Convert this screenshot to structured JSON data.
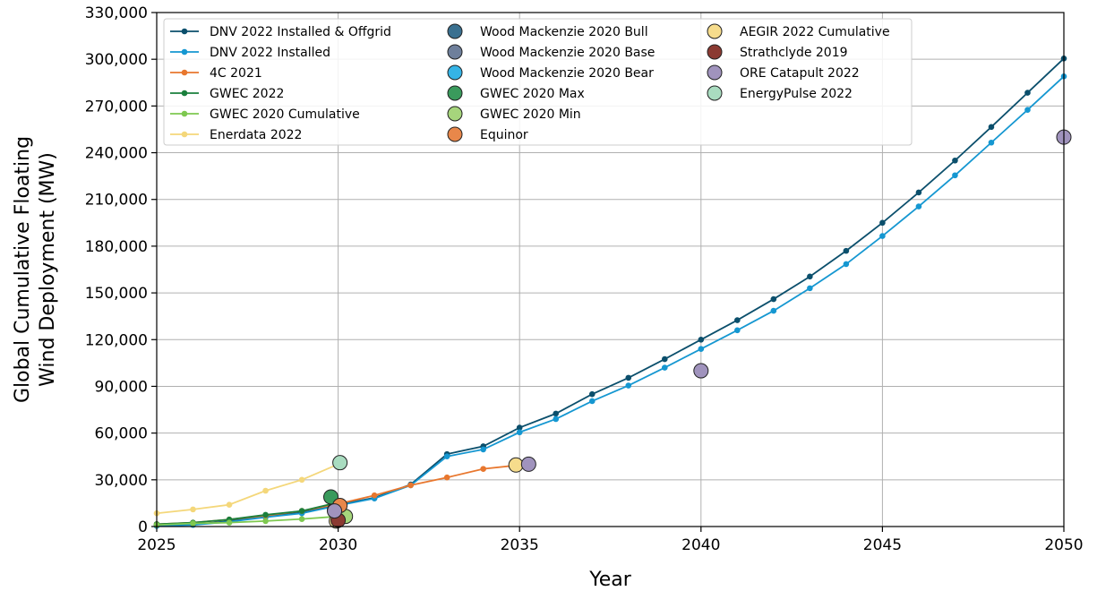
{
  "chart_data": {
    "type": "line",
    "title": "",
    "xlabel": "Year",
    "ylabel_lines": [
      "Global Cumulative Floating",
      "Wind Deployment (MW)"
    ],
    "xlim": [
      2025,
      2050
    ],
    "ylim": [
      0,
      330000
    ],
    "xticks": [
      2025,
      2030,
      2035,
      2040,
      2045,
      2050
    ],
    "yticks": [
      0,
      30000,
      60000,
      90000,
      120000,
      150000,
      180000,
      210000,
      240000,
      270000,
      300000,
      330000
    ],
    "ytick_labels": [
      "0",
      "30,000",
      "60,000",
      "90,000",
      "120,000",
      "150,000",
      "180,000",
      "210,000",
      "240,000",
      "270,000",
      "300,000",
      "330,000"
    ],
    "xtick_labels": [
      "2025",
      "2030",
      "2035",
      "2040",
      "2045",
      "2050"
    ],
    "grid": true,
    "legend_position": "top-left",
    "line_series": [
      {
        "name": "DNV 2022 Installed & Offgrid",
        "color": "#0b4f6c",
        "x": [
          2025,
          2026,
          2027,
          2028,
          2029,
          2030,
          2031,
          2032,
          2033,
          2034,
          2035,
          2036,
          2037,
          2038,
          2039,
          2040,
          2041,
          2042,
          2043,
          2044,
          2045,
          2046,
          2047,
          2048,
          2049,
          2050
        ],
        "y": [
          500,
          1200,
          3500,
          6500,
          9000,
          14000,
          18500,
          27000,
          46500,
          51500,
          63500,
          72500,
          85000,
          95500,
          107500,
          120000,
          132500,
          146000,
          160500,
          177000,
          195000,
          214500,
          235000,
          256500,
          278500,
          300500
        ]
      },
      {
        "name": "DNV 2022 Installed",
        "color": "#1597d1",
        "x": [
          2025,
          2026,
          2027,
          2028,
          2029,
          2030,
          2031,
          2032,
          2033,
          2034,
          2035,
          2036,
          2037,
          2038,
          2039,
          2040,
          2041,
          2042,
          2043,
          2044,
          2045,
          2046,
          2047,
          2048,
          2049,
          2050
        ],
        "y": [
          400,
          1000,
          3000,
          6000,
          8500,
          13500,
          18000,
          26500,
          45000,
          49500,
          60500,
          69000,
          80500,
          90500,
          102000,
          114000,
          126000,
          138500,
          153000,
          168500,
          186500,
          205500,
          225500,
          246500,
          267500,
          289000
        ]
      },
      {
        "name": "4C 2021",
        "color": "#e8772e",
        "x": [
          2025,
          2026,
          2027,
          2028,
          2029,
          2030,
          2031,
          2032,
          2033,
          2034,
          2035
        ],
        "y": [
          1500,
          2500,
          4500,
          7000,
          10000,
          14500,
          20000,
          26500,
          31500,
          37000,
          39500
        ]
      },
      {
        "name": "GWEC 2022",
        "color": "#1a7f3c",
        "x": [
          2025,
          2026,
          2027,
          2028,
          2029,
          2030
        ],
        "y": [
          1500,
          2500,
          4500,
          7500,
          10000,
          15500
        ]
      },
      {
        "name": "GWEC 2020 Cumulative",
        "color": "#7ec850",
        "x": [
          2025,
          2026,
          2027,
          2028,
          2029,
          2030
        ],
        "y": [
          1000,
          2000,
          2500,
          3500,
          4800,
          6500
        ]
      },
      {
        "name": "Enerdata 2022",
        "color": "#f4d77a",
        "x": [
          2025,
          2026,
          2027,
          2028,
          2029,
          2030
        ],
        "y": [
          8500,
          11000,
          14000,
          23000,
          30000,
          40000
        ]
      }
    ],
    "point_series": [
      {
        "name": "Wood Mackenzie 2020 Bull",
        "color": "#3a7090",
        "points": [
          {
            "x": 2030,
            "y": 11000
          }
        ]
      },
      {
        "name": "Wood Mackenzie 2020 Base",
        "color": "#6e7f9b",
        "points": [
          {
            "x": 2029.9,
            "y": 10500
          }
        ]
      },
      {
        "name": "Wood Mackenzie 2020 Bear",
        "color": "#35b4e6",
        "points": [
          {
            "x": 2030,
            "y": 9000
          }
        ]
      },
      {
        "name": "GWEC 2020 Max",
        "color": "#3a9a5c",
        "points": [
          {
            "x": 2029.8,
            "y": 19000
          }
        ]
      },
      {
        "name": "GWEC 2020 Min",
        "color": "#a6d57c",
        "points": [
          {
            "x": 2030.2,
            "y": 6500
          }
        ]
      },
      {
        "name": "Equinor",
        "color": "#e8874a",
        "points": [
          {
            "x": 2030.05,
            "y": 13500
          }
        ]
      },
      {
        "name": "AEGIR 2022 Cumulative",
        "color": "#f6dc8c",
        "points": [
          {
            "x": 2029.95,
            "y": 3500
          },
          {
            "x": 2034.9,
            "y": 39500
          }
        ]
      },
      {
        "name": "Strathclyde 2019",
        "color": "#8b3a32",
        "points": [
          {
            "x": 2030,
            "y": 4000
          }
        ]
      },
      {
        "name": "ORE Catapult 2022",
        "color": "#a093bd",
        "points": [
          {
            "x": 2029.9,
            "y": 10000
          },
          {
            "x": 2035.25,
            "y": 40000
          },
          {
            "x": 2040,
            "y": 100000
          },
          {
            "x": 2050,
            "y": 250000
          }
        ]
      },
      {
        "name": "EnergyPulse 2022",
        "color": "#a9dcc0",
        "points": [
          {
            "x": 2030.05,
            "y": 41000
          }
        ]
      }
    ]
  }
}
